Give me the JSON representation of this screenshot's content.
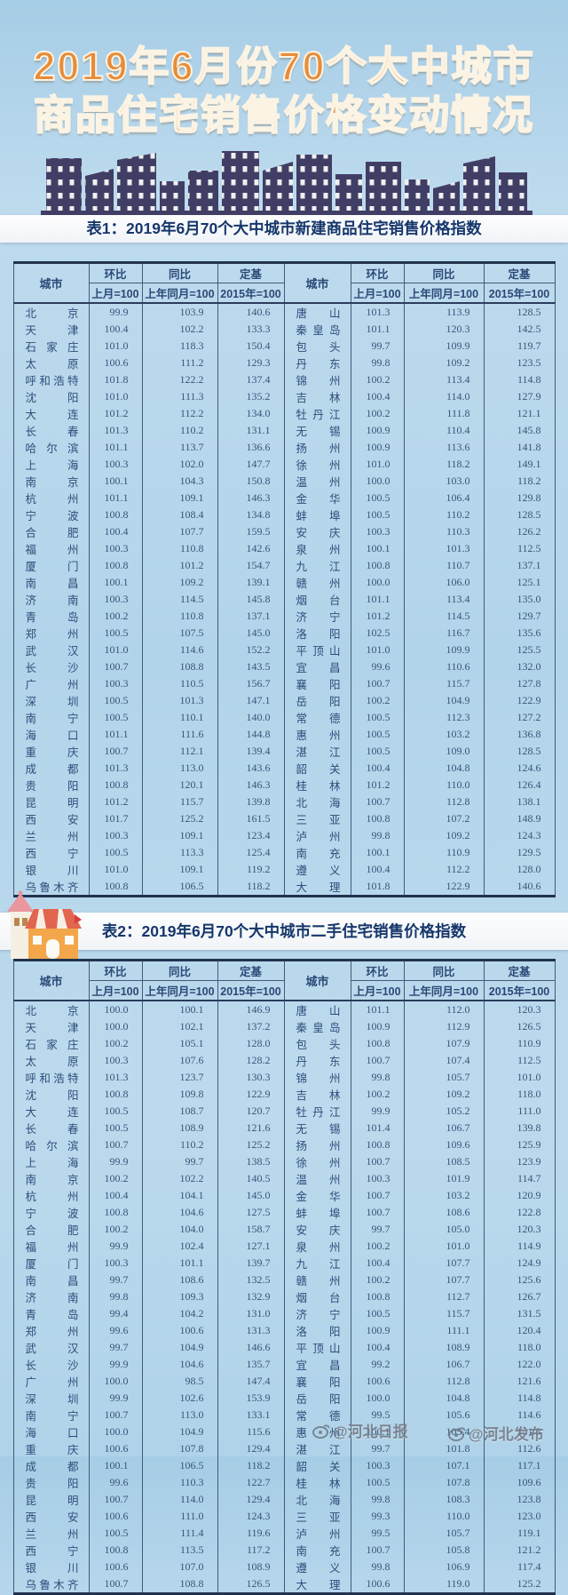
{
  "page": {
    "title_line1": "2019年6月份70个大中城市",
    "title_line2": "商品住宅销售价格变动情况"
  },
  "columns": {
    "city": "城市",
    "mom": "环比",
    "yoy": "同比",
    "fixed": "定基",
    "mom_sub": "上月=100",
    "yoy_sub": "上年同月=100",
    "fixed_sub": "2015年=100"
  },
  "table1": {
    "caption": "表1：2019年6月70个大中城市新建商品住宅销售价格指数",
    "rows": [
      [
        "北京",
        "99.9",
        "103.9",
        "140.6",
        "唐山",
        "101.3",
        "113.9",
        "128.5"
      ],
      [
        "天津",
        "100.4",
        "102.2",
        "133.3",
        "秦皇岛",
        "101.1",
        "120.3",
        "142.5"
      ],
      [
        "石家庄",
        "101.0",
        "118.3",
        "150.4",
        "包头",
        "99.7",
        "109.9",
        "119.7"
      ],
      [
        "太原",
        "100.6",
        "111.2",
        "129.3",
        "丹东",
        "99.8",
        "109.2",
        "123.5"
      ],
      [
        "呼和浩特",
        "101.8",
        "122.2",
        "137.4",
        "锦州",
        "100.2",
        "113.4",
        "114.8"
      ],
      [
        "沈阳",
        "101.0",
        "111.3",
        "135.2",
        "吉林",
        "100.4",
        "114.0",
        "127.9"
      ],
      [
        "大连",
        "101.2",
        "112.2",
        "134.0",
        "牡丹江",
        "100.2",
        "111.8",
        "121.1"
      ],
      [
        "长春",
        "101.3",
        "110.2",
        "131.1",
        "无锡",
        "100.9",
        "110.4",
        "145.8"
      ],
      [
        "哈尔滨",
        "101.1",
        "113.7",
        "136.6",
        "扬州",
        "100.9",
        "113.6",
        "141.8"
      ],
      [
        "上海",
        "100.3",
        "102.0",
        "147.7",
        "徐州",
        "101.0",
        "118.2",
        "149.1"
      ],
      [
        "南京",
        "100.1",
        "104.3",
        "150.8",
        "温州",
        "100.0",
        "103.0",
        "118.2"
      ],
      [
        "杭州",
        "101.1",
        "109.1",
        "146.3",
        "金华",
        "100.5",
        "106.4",
        "129.8"
      ],
      [
        "宁波",
        "100.8",
        "108.4",
        "134.8",
        "蚌埠",
        "100.5",
        "110.2",
        "128.5"
      ],
      [
        "合肥",
        "100.4",
        "107.7",
        "159.5",
        "安庆",
        "100.3",
        "110.3",
        "126.2"
      ],
      [
        "福州",
        "100.3",
        "110.8",
        "142.6",
        "泉州",
        "100.1",
        "101.3",
        "112.5"
      ],
      [
        "厦门",
        "100.8",
        "101.2",
        "154.7",
        "九江",
        "100.8",
        "110.7",
        "137.1"
      ],
      [
        "南昌",
        "100.1",
        "109.2",
        "139.1",
        "赣州",
        "100.0",
        "106.0",
        "125.1"
      ],
      [
        "济南",
        "100.3",
        "114.5",
        "145.8",
        "烟台",
        "101.1",
        "113.4",
        "135.0"
      ],
      [
        "青岛",
        "100.2",
        "110.8",
        "137.1",
        "济宁",
        "101.2",
        "114.5",
        "129.7"
      ],
      [
        "郑州",
        "100.5",
        "107.5",
        "145.0",
        "洛阳",
        "102.5",
        "116.7",
        "135.6"
      ],
      [
        "武汉",
        "101.0",
        "114.6",
        "152.2",
        "平顶山",
        "101.0",
        "109.9",
        "125.5"
      ],
      [
        "长沙",
        "100.7",
        "108.8",
        "143.5",
        "宜昌",
        "99.6",
        "110.6",
        "132.0"
      ],
      [
        "广州",
        "100.3",
        "110.5",
        "156.7",
        "襄阳",
        "100.7",
        "115.7",
        "127.8"
      ],
      [
        "深圳",
        "100.5",
        "101.3",
        "147.1",
        "岳阳",
        "100.2",
        "104.9",
        "122.9"
      ],
      [
        "南宁",
        "100.5",
        "110.1",
        "140.0",
        "常德",
        "100.5",
        "112.3",
        "127.2"
      ],
      [
        "海口",
        "101.1",
        "111.6",
        "144.8",
        "惠州",
        "100.5",
        "103.2",
        "136.8"
      ],
      [
        "重庆",
        "100.7",
        "112.1",
        "139.4",
        "湛江",
        "100.5",
        "109.0",
        "128.5"
      ],
      [
        "成都",
        "101.3",
        "113.0",
        "143.6",
        "韶关",
        "100.4",
        "104.8",
        "124.6"
      ],
      [
        "贵阳",
        "100.8",
        "120.1",
        "146.3",
        "桂林",
        "101.2",
        "110.0",
        "126.4"
      ],
      [
        "昆明",
        "101.2",
        "115.7",
        "139.8",
        "北海",
        "100.7",
        "112.8",
        "138.1"
      ],
      [
        "西安",
        "101.7",
        "125.2",
        "161.5",
        "三亚",
        "100.8",
        "107.2",
        "148.9"
      ],
      [
        "兰州",
        "100.3",
        "109.1",
        "123.4",
        "泸州",
        "99.8",
        "109.2",
        "124.3"
      ],
      [
        "西宁",
        "100.5",
        "113.3",
        "125.4",
        "南充",
        "100.1",
        "110.9",
        "129.5"
      ],
      [
        "银川",
        "101.0",
        "109.1",
        "119.2",
        "遵义",
        "100.4",
        "112.2",
        "128.0"
      ],
      [
        "乌鲁木齐",
        "100.8",
        "106.5",
        "118.2",
        "大理",
        "101.8",
        "122.9",
        "140.6"
      ]
    ]
  },
  "table2": {
    "caption": "表2：2019年6月70个大中城市二手住宅销售价格指数",
    "rows": [
      [
        "北京",
        "100.0",
        "100.1",
        "146.9",
        "唐山",
        "101.1",
        "112.0",
        "120.3"
      ],
      [
        "天津",
        "100.0",
        "102.1",
        "137.2",
        "秦皇岛",
        "100.9",
        "112.9",
        "126.5"
      ],
      [
        "石家庄",
        "100.2",
        "105.1",
        "128.0",
        "包头",
        "100.8",
        "107.9",
        "110.9"
      ],
      [
        "太原",
        "100.3",
        "107.6",
        "128.2",
        "丹东",
        "100.7",
        "107.4",
        "112.5"
      ],
      [
        "呼和浩特",
        "101.3",
        "123.7",
        "130.3",
        "锦州",
        "99.8",
        "105.7",
        "101.0"
      ],
      [
        "沈阳",
        "100.8",
        "109.8",
        "122.9",
        "吉林",
        "100.2",
        "109.2",
        "118.0"
      ],
      [
        "大连",
        "100.5",
        "108.7",
        "120.7",
        "牡丹江",
        "99.9",
        "105.2",
        "111.0"
      ],
      [
        "长春",
        "100.5",
        "108.9",
        "121.6",
        "无锡",
        "101.4",
        "106.7",
        "139.8"
      ],
      [
        "哈尔滨",
        "100.7",
        "110.2",
        "125.2",
        "扬州",
        "100.8",
        "109.6",
        "125.9"
      ],
      [
        "上海",
        "99.9",
        "99.7",
        "138.5",
        "徐州",
        "100.7",
        "108.5",
        "123.9"
      ],
      [
        "南京",
        "100.2",
        "102.2",
        "140.5",
        "温州",
        "100.3",
        "101.9",
        "114.7"
      ],
      [
        "杭州",
        "100.4",
        "104.1",
        "145.0",
        "金华",
        "100.7",
        "103.2",
        "120.9"
      ],
      [
        "宁波",
        "100.8",
        "104.6",
        "127.5",
        "蚌埠",
        "100.7",
        "108.6",
        "122.8"
      ],
      [
        "合肥",
        "100.2",
        "104.0",
        "158.7",
        "安庆",
        "99.7",
        "105.0",
        "120.3"
      ],
      [
        "福州",
        "99.9",
        "102.4",
        "127.1",
        "泉州",
        "100.2",
        "101.0",
        "114.9"
      ],
      [
        "厦门",
        "100.3",
        "101.1",
        "139.7",
        "九江",
        "100.4",
        "107.7",
        "124.9"
      ],
      [
        "南昌",
        "99.7",
        "108.6",
        "132.5",
        "赣州",
        "100.2",
        "107.7",
        "125.6"
      ],
      [
        "济南",
        "99.8",
        "109.3",
        "132.9",
        "烟台",
        "100.8",
        "112.7",
        "126.7"
      ],
      [
        "青岛",
        "99.4",
        "104.2",
        "131.0",
        "济宁",
        "100.5",
        "115.7",
        "131.5"
      ],
      [
        "郑州",
        "99.6",
        "100.6",
        "131.3",
        "洛阳",
        "100.9",
        "111.1",
        "120.4"
      ],
      [
        "武汉",
        "99.7",
        "104.9",
        "146.6",
        "平顶山",
        "100.4",
        "108.9",
        "118.0"
      ],
      [
        "长沙",
        "99.9",
        "104.6",
        "135.7",
        "宜昌",
        "99.2",
        "106.7",
        "122.0"
      ],
      [
        "广州",
        "100.0",
        "98.5",
        "147.4",
        "襄阳",
        "100.6",
        "112.8",
        "121.6"
      ],
      [
        "深圳",
        "99.9",
        "102.6",
        "153.9",
        "岳阳",
        "100.0",
        "104.8",
        "114.8"
      ],
      [
        "南宁",
        "100.7",
        "113.0",
        "133.1",
        "常德",
        "99.5",
        "105.6",
        "114.6"
      ],
      [
        "海口",
        "100.0",
        "104.9",
        "115.6",
        "惠州",
        "100.1",
        "105.4",
        "131.8"
      ],
      [
        "重庆",
        "100.6",
        "107.8",
        "129.4",
        "湛江",
        "99.7",
        "101.8",
        "112.6"
      ],
      [
        "成都",
        "100.1",
        "106.5",
        "118.2",
        "韶关",
        "100.3",
        "107.1",
        "117.1"
      ],
      [
        "贵阳",
        "99.6",
        "110.3",
        "122.7",
        "桂林",
        "100.5",
        "107.8",
        "109.6"
      ],
      [
        "昆明",
        "100.7",
        "114.0",
        "129.4",
        "北海",
        "99.8",
        "108.3",
        "123.8"
      ],
      [
        "西安",
        "100.6",
        "111.0",
        "124.3",
        "三亚",
        "99.3",
        "110.0",
        "123.0"
      ],
      [
        "兰州",
        "100.5",
        "111.4",
        "119.6",
        "泸州",
        "99.5",
        "105.7",
        "119.1"
      ],
      [
        "西宁",
        "100.8",
        "113.5",
        "117.2",
        "南充",
        "100.7",
        "105.8",
        "121.2"
      ],
      [
        "银川",
        "100.6",
        "107.0",
        "108.9",
        "遵义",
        "99.8",
        "106.9",
        "117.4"
      ],
      [
        "乌鲁木齐",
        "100.7",
        "108.8",
        "126.5",
        "大理",
        "100.6",
        "119.0",
        "125.2"
      ]
    ]
  },
  "watermarks": {
    "wm1": "@河北日报",
    "wm2": "@河北发布"
  },
  "colors": {
    "title_orange": "#e78c38",
    "building_navy": "#413e66",
    "banner_text_blue": "#16376b",
    "table_text_blue": "#33507c",
    "background_blue": "#b2d4ea"
  }
}
